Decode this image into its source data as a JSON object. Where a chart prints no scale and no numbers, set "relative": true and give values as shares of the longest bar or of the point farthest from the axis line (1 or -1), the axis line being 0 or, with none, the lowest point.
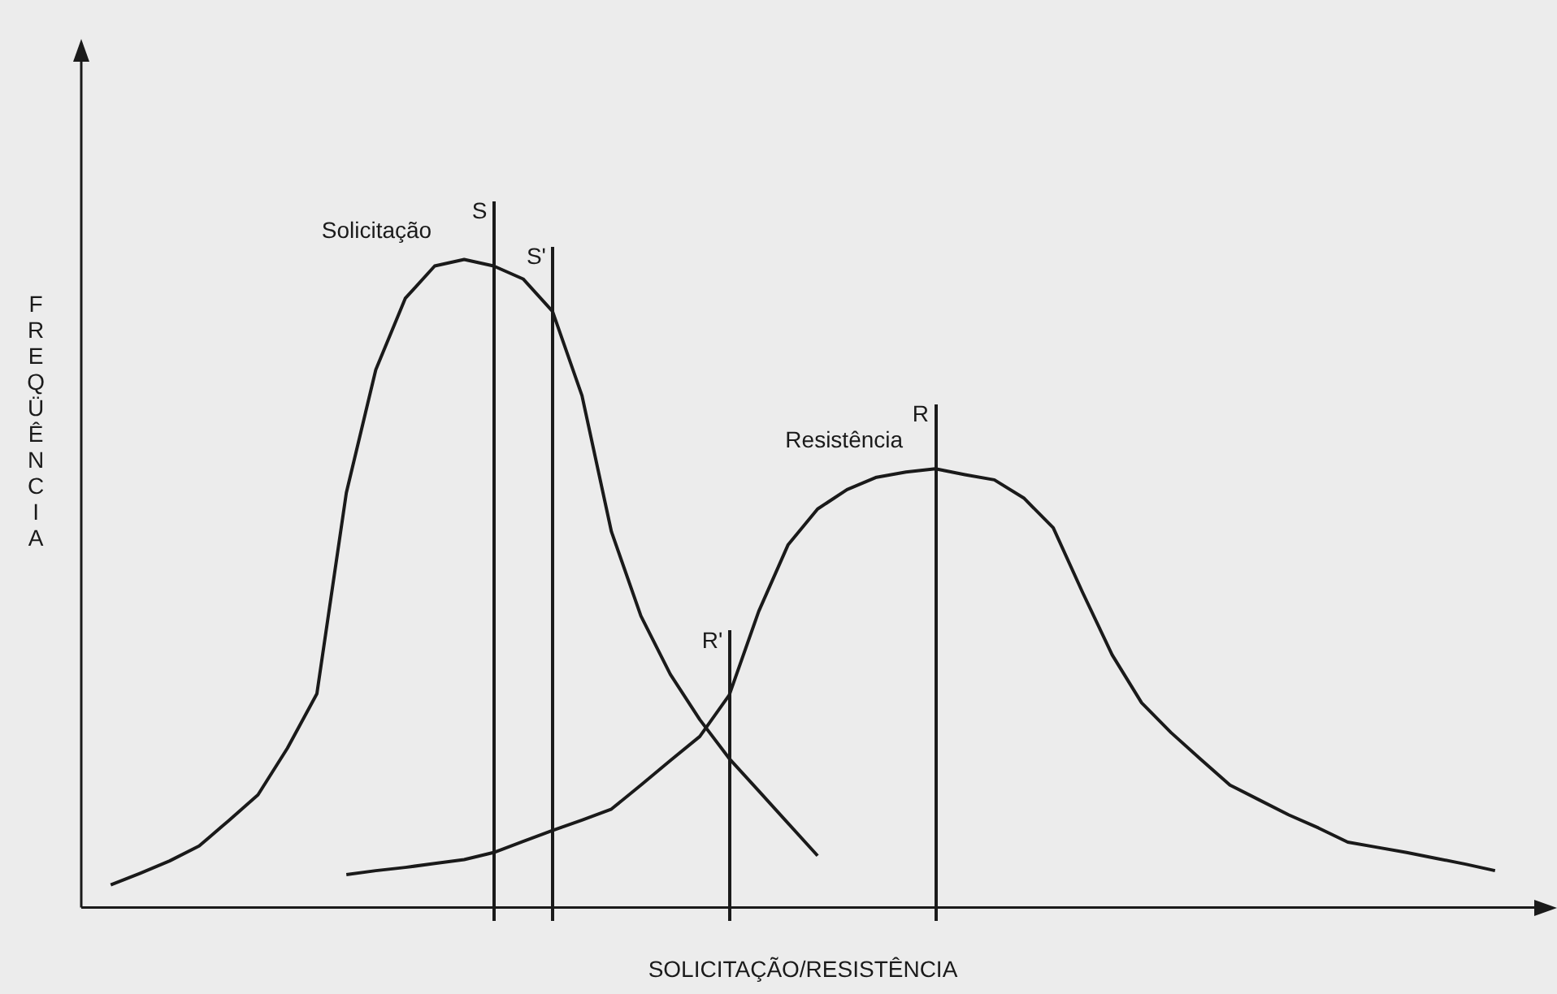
{
  "chart_data": {
    "type": "line",
    "relative": true,
    "xlabel": "SOLICITAÇÃO/RESISTÊNCIA",
    "ylabel": "FREQÜÊNCIA",
    "marker": "none",
    "line_style": "solid",
    "categories": [
      null,
      null,
      null,
      null,
      null,
      null,
      null,
      null,
      null,
      null,
      null,
      null,
      null,
      null,
      null,
      null,
      null,
      null,
      null,
      null,
      null,
      null,
      null,
      null,
      null,
      null,
      null,
      null,
      null,
      null,
      null,
      null,
      null,
      null,
      null,
      null,
      null,
      null,
      null,
      null,
      null,
      null,
      null,
      null,
      null,
      null,
      null,
      null,
      null,
      null
    ],
    "series": [
      {
        "name": "Solicitação",
        "color": "#1a1a1a",
        "values": [
          null,
          0.035,
          0.053,
          0.072,
          0.095,
          0.134,
          0.174,
          0.246,
          0.33,
          0.64,
          0.83,
          0.94,
          0.99,
          1,
          0.99,
          0.97,
          0.92,
          0.79,
          0.58,
          0.45,
          0.36,
          0.29,
          0.23,
          0.18,
          0.13,
          0.08,
          null,
          null,
          null,
          null,
          null,
          null,
          null,
          null,
          null,
          null,
          null,
          null,
          null,
          null,
          null,
          null,
          null,
          null,
          null,
          null,
          null,
          null,
          null,
          null
        ]
      },
      {
        "name": "Resistência",
        "color": "#1a1a1a",
        "values": [
          null,
          null,
          null,
          null,
          null,
          null,
          null,
          null,
          null,
          0.051,
          0.057,
          0.062,
          0.068,
          0.074,
          0.085,
          0.102,
          0.119,
          0.135,
          0.152,
          0.189,
          0.227,
          0.264,
          0.328,
          0.457,
          0.56,
          0.615,
          0.645,
          0.664,
          0.672,
          0.677,
          0.668,
          0.66,
          0.632,
          0.586,
          0.486,
          0.39,
          0.316,
          0.27,
          0.229,
          0.189,
          0.166,
          0.143,
          0.123,
          0.101,
          0.093,
          0.085,
          0.076,
          0.067,
          0.057,
          null
        ]
      }
    ],
    "annotations": [
      "S",
      "S'",
      "R'",
      "R"
    ]
  }
}
